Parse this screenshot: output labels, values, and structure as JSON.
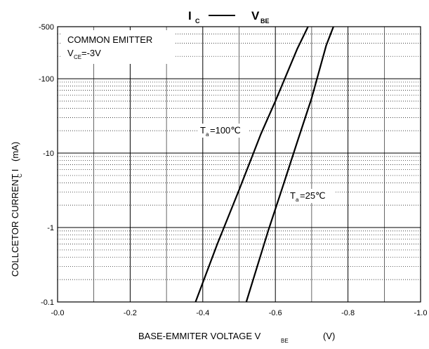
{
  "chart_data": {
    "type": "line",
    "title": {
      "main": "I",
      "main_sub": "C",
      "sep": "—",
      "second": "V",
      "second_sub": "BE"
    },
    "xlabel": {
      "text": "BASE-EMMITER VOLTAGE  V",
      "sub": "BE",
      "unit": "(V)"
    },
    "ylabel": {
      "text": "COLLCETOR CURRENT  I",
      "sub": "C",
      "unit": "(mA)"
    },
    "xlim": [
      0.0,
      -1.0
    ],
    "ylim": [
      -0.1,
      -500
    ],
    "y_scale": "log",
    "x_ticks": [
      "-0.0",
      "-0.2",
      "-0.4",
      "-0.6",
      "-0.8",
      "-1.0"
    ],
    "x_tick_values": [
      0.0,
      -0.2,
      -0.4,
      -0.6,
      -0.8,
      -1.0
    ],
    "y_ticks": [
      "-500",
      "-100",
      "-10",
      "-1",
      "-0.1"
    ],
    "y_tick_values": [
      -500,
      -100,
      -10,
      -1,
      -0.1
    ],
    "grid": true,
    "annotations": {
      "condition_line1": "COMMON EMITTER",
      "condition_line2_main": "V",
      "condition_line2_sub": "CE",
      "condition_line2_value": "=-3V"
    },
    "series": [
      {
        "label_main": "T",
        "label_sub": "a",
        "label_value": "=100℃",
        "x": [
          -0.38,
          -0.44,
          -0.5,
          -0.56,
          -0.6,
          -0.66,
          -0.69
        ],
        "y": [
          -0.1,
          -0.6,
          -3.2,
          -18,
          -50,
          -250,
          -500
        ]
      },
      {
        "label_main": "T",
        "label_sub": "a",
        "label_value": "=25℃",
        "x": [
          -0.52,
          -0.58,
          -0.62,
          -0.66,
          -0.7,
          -0.74,
          -0.76
        ],
        "y": [
          -0.1,
          -0.9,
          -3.5,
          -14,
          -55,
          -280,
          -500
        ]
      }
    ]
  }
}
